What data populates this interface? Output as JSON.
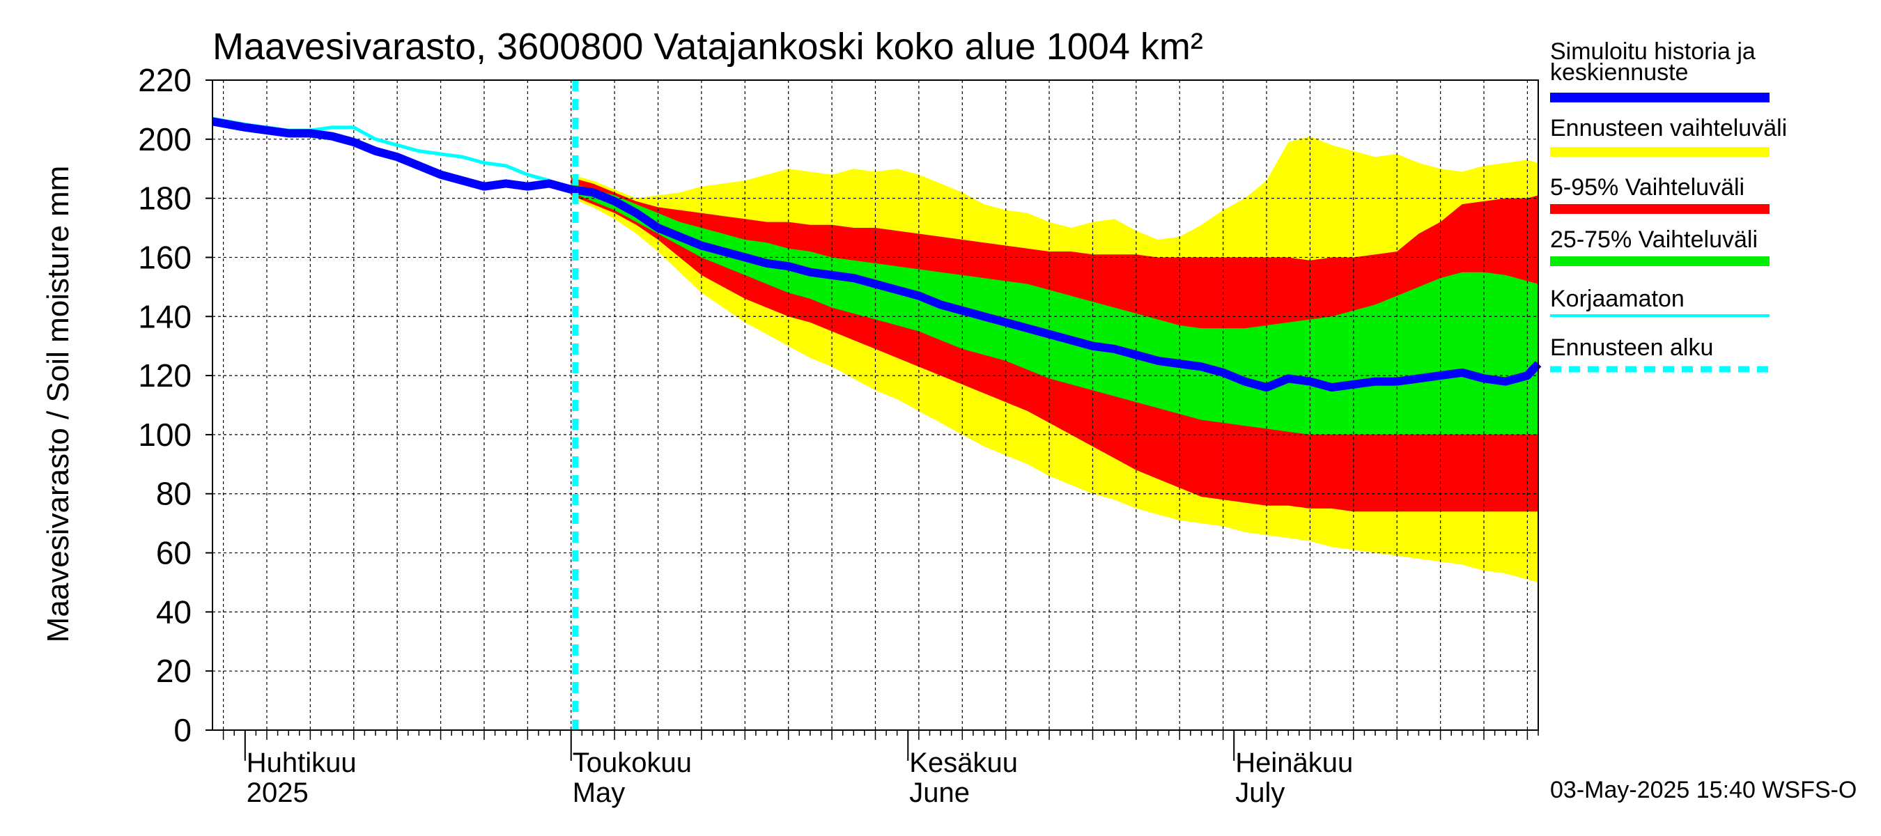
{
  "chart_data": {
    "type": "area",
    "title": "Maavesivarasto, 3600800 Vatajankoski koko alue 1004 km²",
    "ylabel": "Maavesivarasto / Soil moisture   mm",
    "xlabel": "",
    "ylim": [
      0,
      220
    ],
    "yticks": [
      0,
      20,
      40,
      60,
      80,
      100,
      120,
      140,
      160,
      180,
      200,
      220
    ],
    "x_day_range": [
      -3,
      119
    ],
    "x_unit": "days since 2025-04-01",
    "forecast_start_day": 30.4,
    "month_labels": [
      {
        "day": 0,
        "fi": "Huhtikuu",
        "en": "2025"
      },
      {
        "day": 30,
        "fi": "Toukokuu",
        "en": "May"
      },
      {
        "day": 61,
        "fi": "Kesäkuu",
        "en": "June"
      },
      {
        "day": 91,
        "fi": "Heinäkuu",
        "en": "July"
      }
    ],
    "timestamp": "03-May-2025 15:40 WSFS-O",
    "colors": {
      "range": "#ffff00",
      "p5_95": "#ff0000",
      "p25_75": "#00ee00",
      "sim": "#0000ff",
      "uncorrected": "#00ffff",
      "forecast_start": "#00ffff",
      "grid": "#000000"
    },
    "legend": [
      {
        "label": "Simuloitu historia ja",
        "label2": "keskiennuste",
        "color": "#0000ff",
        "style": "thick"
      },
      {
        "label": "Ennusteen vaihteluväli",
        "color": "#ffff00",
        "style": "thick"
      },
      {
        "label": "5-95% Vaihteluväli",
        "color": "#ff0000",
        "style": "thick"
      },
      {
        "label": "25-75% Vaihteluväli",
        "color": "#00ee00",
        "style": "thick"
      },
      {
        "label": "Korjaamaton",
        "color": "#00ffff",
        "style": "thin"
      },
      {
        "label": "Ennusteen alku",
        "color": "#00ffff",
        "style": "dashed"
      }
    ],
    "series": [
      {
        "name": "Simuloitu historia ja keskiennuste",
        "x": [
          -3,
          0,
          2,
          4,
          6,
          8,
          10,
          12,
          14,
          16,
          18,
          20,
          22,
          24,
          26,
          28,
          30,
          32,
          34,
          36,
          38,
          40,
          42,
          44,
          46,
          48,
          50,
          52,
          54,
          56,
          58,
          60,
          62,
          64,
          66,
          68,
          70,
          72,
          74,
          76,
          78,
          80,
          82,
          84,
          86,
          88,
          90,
          92,
          94,
          96,
          98,
          100,
          102,
          104,
          106,
          108,
          110,
          112,
          114,
          116,
          118,
          119
        ],
        "values": [
          206,
          204,
          203,
          202,
          202,
          201,
          199,
          196,
          194,
          191,
          188,
          186,
          184,
          185,
          184,
          185,
          183,
          182,
          179,
          175,
          170,
          167,
          164,
          162,
          160,
          158,
          157,
          155,
          154,
          153,
          151,
          149,
          147,
          144,
          142,
          140,
          138,
          136,
          134,
          132,
          130,
          129,
          127,
          125,
          124,
          123,
          121,
          118,
          116,
          119,
          118,
          116,
          117,
          118,
          118,
          119,
          120,
          121,
          119,
          118,
          120,
          124
        ]
      },
      {
        "name": "Korjaamaton",
        "x": [
          -3,
          0,
          2,
          4,
          6,
          8,
          10,
          12,
          14,
          16,
          18,
          20,
          22,
          24,
          26,
          28
        ],
        "values": [
          207,
          205,
          204,
          203,
          203,
          204,
          204,
          200,
          198,
          196,
          195,
          194,
          192,
          191,
          188,
          186
        ]
      },
      {
        "name": "Ennusteen vaihteluväli",
        "x": [
          30,
          32,
          34,
          36,
          38,
          40,
          42,
          44,
          46,
          48,
          50,
          52,
          54,
          56,
          58,
          60,
          62,
          64,
          66,
          68,
          70,
          72,
          74,
          76,
          78,
          80,
          82,
          84,
          86,
          88,
          90,
          92,
          94,
          96,
          98,
          100,
          102,
          104,
          106,
          108,
          110,
          112,
          114,
          116,
          118,
          119
        ],
        "upper": [
          188,
          186,
          183,
          180,
          181,
          182,
          184,
          185,
          186,
          188,
          190,
          189,
          188,
          190,
          189,
          190,
          188,
          185,
          182,
          178,
          176,
          175,
          172,
          170,
          172,
          173,
          169,
          166,
          167,
          171,
          176,
          180,
          186,
          199,
          201,
          198,
          196,
          194,
          195,
          192,
          190,
          189,
          191,
          192,
          193,
          192
        ],
        "lower": [
          180,
          177,
          173,
          168,
          162,
          155,
          148,
          143,
          138,
          134,
          130,
          126,
          123,
          119,
          115,
          112,
          108,
          104,
          100,
          96,
          93,
          90,
          86,
          83,
          80,
          78,
          75,
          73,
          71,
          70,
          69,
          67,
          66,
          65,
          64,
          62,
          61,
          60,
          59,
          58,
          57,
          56,
          54,
          53,
          51,
          50
        ]
      },
      {
        "name": "5-95% Vaihteluväli",
        "x": [
          30,
          32,
          34,
          36,
          38,
          40,
          42,
          44,
          46,
          48,
          50,
          52,
          54,
          56,
          58,
          60,
          62,
          64,
          66,
          68,
          70,
          72,
          74,
          76,
          78,
          80,
          82,
          84,
          86,
          88,
          90,
          92,
          94,
          96,
          98,
          100,
          102,
          104,
          106,
          108,
          110,
          112,
          114,
          116,
          118,
          119
        ],
        "upper": [
          187,
          185,
          182,
          179,
          177,
          176,
          175,
          174,
          173,
          172,
          172,
          171,
          171,
          170,
          170,
          169,
          168,
          167,
          166,
          165,
          164,
          163,
          162,
          162,
          161,
          161,
          161,
          160,
          160,
          160,
          160,
          160,
          160,
          160,
          159,
          160,
          160,
          161,
          162,
          168,
          172,
          178,
          179,
          180,
          180,
          181
        ],
        "lower": [
          181,
          178,
          175,
          171,
          166,
          160,
          154,
          150,
          146,
          143,
          140,
          138,
          135,
          132,
          129,
          126,
          123,
          120,
          117,
          114,
          111,
          108,
          104,
          100,
          96,
          92,
          88,
          85,
          82,
          79,
          78,
          77,
          76,
          76,
          75,
          75,
          74,
          74,
          74,
          74,
          74,
          74,
          74,
          74,
          74,
          74
        ]
      },
      {
        "name": "25-75% Vaihteluväli",
        "x": [
          30,
          32,
          34,
          36,
          38,
          40,
          42,
          44,
          46,
          48,
          50,
          52,
          54,
          56,
          58,
          60,
          62,
          64,
          66,
          68,
          70,
          72,
          74,
          76,
          78,
          80,
          82,
          84,
          86,
          88,
          90,
          92,
          94,
          96,
          98,
          100,
          102,
          104,
          106,
          108,
          110,
          112,
          114,
          116,
          118,
          119
        ],
        "upper": [
          185,
          183,
          181,
          178,
          175,
          172,
          170,
          168,
          166,
          165,
          163,
          162,
          160,
          159,
          158,
          157,
          156,
          155,
          154,
          153,
          152,
          151,
          149,
          147,
          145,
          143,
          141,
          139,
          137,
          136,
          136,
          136,
          137,
          138,
          139,
          140,
          142,
          144,
          147,
          150,
          153,
          155,
          155,
          154,
          152,
          151
        ],
        "lower": [
          182,
          179,
          176,
          172,
          168,
          164,
          160,
          157,
          154,
          151,
          148,
          146,
          143,
          141,
          139,
          137,
          135,
          132,
          129,
          127,
          125,
          122,
          119,
          117,
          115,
          113,
          111,
          109,
          107,
          105,
          104,
          103,
          102,
          101,
          100,
          100,
          100,
          100,
          100,
          100,
          100,
          100,
          100,
          100,
          100,
          100
        ]
      }
    ]
  }
}
